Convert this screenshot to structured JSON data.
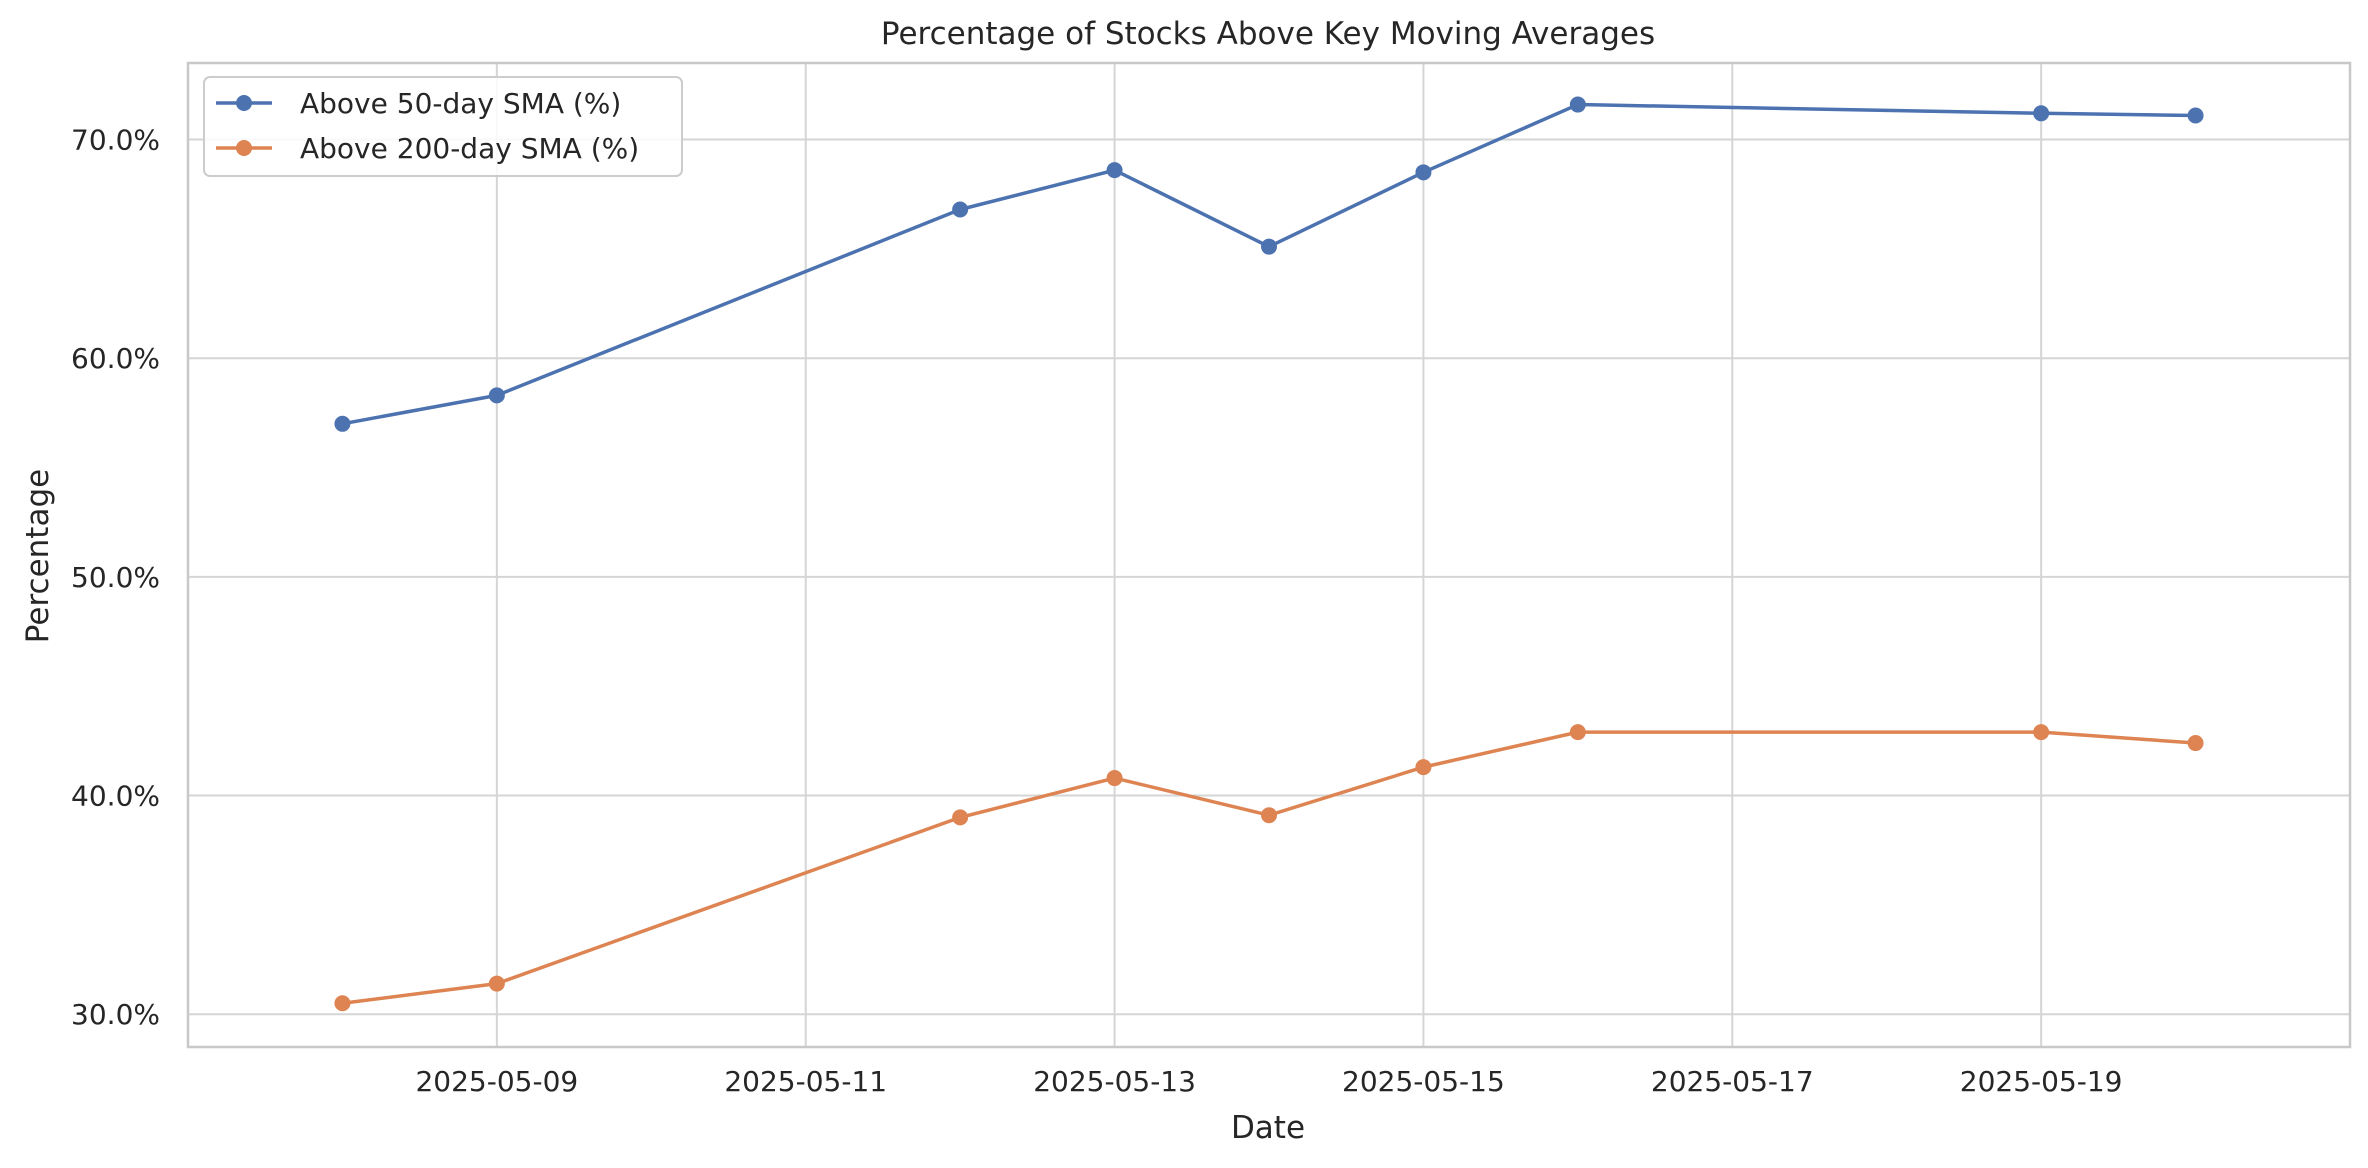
{
  "colors": {
    "series_1": "#4c72b0",
    "series_2": "#dd8452",
    "grid": "#d5d5d5",
    "frame": "#c8c8c8",
    "text": "#262626"
  },
  "chart_data": {
    "type": "line",
    "title": "Percentage of Stocks Above Key Moving Averages",
    "xlabel": "Date",
    "ylabel": "Percentage",
    "x_type": "date",
    "xlim": [
      "2025-05-07",
      "2025-05-21"
    ],
    "ylim": [
      28.5,
      73.5
    ],
    "grid": true,
    "legend_position": "top-left",
    "x": [
      "2025-05-08",
      "2025-05-09",
      "2025-05-12",
      "2025-05-13",
      "2025-05-14",
      "2025-05-15",
      "2025-05-16",
      "2025-05-19",
      "2025-05-20"
    ],
    "x_ticks": [
      {
        "value": "2025-05-09",
        "label": "2025-05-09"
      },
      {
        "value": "2025-05-11",
        "label": "2025-05-11"
      },
      {
        "value": "2025-05-13",
        "label": "2025-05-13"
      },
      {
        "value": "2025-05-15",
        "label": "2025-05-15"
      },
      {
        "value": "2025-05-17",
        "label": "2025-05-17"
      },
      {
        "value": "2025-05-19",
        "label": "2025-05-19"
      }
    ],
    "y_ticks": [
      {
        "value": 30,
        "label": "30.0%"
      },
      {
        "value": 40,
        "label": "40.0%"
      },
      {
        "value": 50,
        "label": "50.0%"
      },
      {
        "value": 60,
        "label": "60.0%"
      },
      {
        "value": 70,
        "label": "70.0%"
      }
    ],
    "series": [
      {
        "name": "Above 50-day SMA (%)",
        "color": "#4c72b0",
        "values": [
          57.0,
          58.3,
          66.8,
          68.6,
          65.1,
          68.5,
          71.6,
          71.2,
          71.1
        ]
      },
      {
        "name": "Above 200-day SMA (%)",
        "color": "#dd8452",
        "values": [
          30.5,
          31.4,
          39.0,
          40.8,
          39.1,
          41.3,
          42.9,
          42.9,
          42.4
        ]
      }
    ]
  }
}
